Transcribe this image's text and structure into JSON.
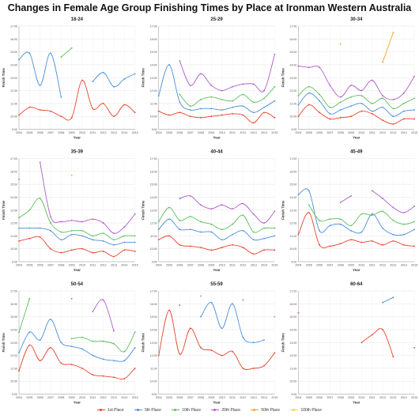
{
  "title": "Changes in Female Age Group Finishing Times by Place at Ironman Western Australia",
  "series_colors": {
    "1st Place": "#e8432e",
    "5th Place": "#4a90d9",
    "10th Place": "#5cbf5c",
    "20th Place": "#b05cc8",
    "50th Place": "#f5a623",
    "100th Place": "#f5d142"
  },
  "legend": [
    "1st Place",
    "5th Place",
    "10th Place",
    "20th Place",
    "50th Place",
    "100th Place"
  ],
  "chart_data": [
    {
      "type": "line",
      "title": "18-24",
      "xlabel": "Year",
      "ylabel": "Finish Time",
      "x": [
        2004,
        2005,
        2006,
        2007,
        2008,
        2009,
        2010,
        2011,
        2012,
        2013,
        2014,
        2015
      ],
      "yticks": [
        "9:00",
        "10:00",
        "11:00",
        "12:00",
        "13:00",
        "14:00",
        "15:00",
        "16:00",
        "17:00"
      ],
      "ylim": [
        9,
        17
      ],
      "series": [
        {
          "name": "1st Place",
          "values": [
            10.1,
            10.7,
            10.5,
            10.4,
            10.0,
            9.9,
            12.8,
            10.6,
            11.0,
            10.0,
            10.9,
            10.3
          ]
        },
        {
          "name": "5th Place",
          "values": [
            14.4,
            14.9,
            12.4,
            14.9,
            11.5,
            null,
            null,
            12.7,
            13.4,
            12.3,
            12.9,
            13.3
          ]
        },
        {
          "name": "10th Place",
          "values": [
            null,
            null,
            null,
            null,
            14.6,
            15.3,
            null,
            null,
            null,
            null,
            null,
            null
          ]
        }
      ]
    },
    {
      "type": "line",
      "title": "25-29",
      "xlabel": "Year",
      "ylabel": "Finish Time",
      "x": [
        2004,
        2005,
        2006,
        2007,
        2008,
        2009,
        2010,
        2011,
        2012,
        2013,
        2014,
        2015
      ],
      "yticks": [
        "9:00",
        "10:00",
        "11:00",
        "12:00",
        "13:00",
        "14:00",
        "15:00",
        "16:00",
        "17:00"
      ],
      "ylim": [
        9,
        17
      ],
      "series": [
        {
          "name": "1st Place",
          "values": [
            10.4,
            10.1,
            10.3,
            10.0,
            9.9,
            10.0,
            10.1,
            10.2,
            10.1,
            9.5,
            10.3,
            9.9
          ]
        },
        {
          "name": "5th Place",
          "values": [
            11.6,
            14.0,
            11.1,
            10.5,
            10.6,
            10.6,
            10.5,
            10.7,
            10.8,
            10.3,
            10.7,
            11.2
          ]
        },
        {
          "name": "10th Place",
          "values": [
            null,
            null,
            11.7,
            10.8,
            11.3,
            11.5,
            11.3,
            11.2,
            11.7,
            11.1,
            11.4,
            12.3
          ]
        },
        {
          "name": "20th Place",
          "values": [
            null,
            null,
            14.3,
            12.4,
            13.3,
            12.4,
            12.0,
            12.3,
            12.5,
            12.5,
            12.0,
            14.8
          ]
        }
      ]
    },
    {
      "type": "line",
      "title": "30-34",
      "xlabel": "Year",
      "ylabel": "Finish Time",
      "x": [
        2004,
        2005,
        2006,
        2007,
        2008,
        2009,
        2010,
        2011,
        2012,
        2013,
        2014,
        2015
      ],
      "yticks": [
        "9:00",
        "10:00",
        "11:00",
        "12:00",
        "13:00",
        "14:00",
        "15:00",
        "16:00",
        "17:00"
      ],
      "ylim": [
        9,
        17
      ],
      "series": [
        {
          "name": "1st Place",
          "values": [
            10.0,
            10.9,
            10.3,
            9.8,
            9.9,
            10.0,
            10.4,
            10.2,
            9.7,
            9.4,
            9.8,
            9.8
          ]
        },
        {
          "name": "5th Place",
          "values": [
            10.9,
            11.8,
            11.2,
            10.2,
            10.5,
            10.8,
            11.0,
            10.4,
            10.7,
            10.0,
            10.4,
            10.5
          ]
        },
        {
          "name": "10th Place",
          "values": [
            11.6,
            12.3,
            11.7,
            10.7,
            11.1,
            11.5,
            11.6,
            11.0,
            11.4,
            10.6,
            11.0,
            11.4
          ]
        },
        {
          "name": "20th Place",
          "values": [
            13.9,
            13.8,
            13.8,
            12.4,
            11.5,
            12.4,
            12.0,
            12.8,
            11.6,
            11.3,
            11.8,
            13.1
          ]
        },
        {
          "name": "50th Place",
          "values": [
            null,
            null,
            null,
            null,
            15.6,
            null,
            null,
            null,
            14.2,
            16.5,
            null,
            null
          ]
        }
      ]
    },
    {
      "type": "line",
      "title": "35-39",
      "xlabel": "Year",
      "ylabel": "Finish Time",
      "x": [
        2004,
        2005,
        2006,
        2007,
        2008,
        2009,
        2010,
        2011,
        2012,
        2013,
        2014,
        2015
      ],
      "yticks": [
        "9:00",
        "10:00",
        "11:00",
        "12:00",
        "13:00",
        "14:00",
        "15:00",
        "16:00",
        "17:00"
      ],
      "ylim": [
        9,
        17
      ],
      "series": [
        {
          "name": "1st Place",
          "values": [
            10.6,
            10.8,
            10.9,
            10.0,
            9.7,
            9.9,
            10.0,
            9.7,
            9.8,
            9.4,
            9.9,
            9.8
          ]
        },
        {
          "name": "5th Place",
          "values": [
            11.6,
            11.6,
            11.6,
            11.4,
            10.7,
            11.1,
            11.0,
            10.7,
            10.6,
            10.3,
            10.5,
            10.5
          ]
        },
        {
          "name": "10th Place",
          "values": [
            12.4,
            13.0,
            13.9,
            12.0,
            11.3,
            11.4,
            11.4,
            11.0,
            11.2,
            10.7,
            11.0,
            11.0
          ]
        },
        {
          "name": "20th Place",
          "values": [
            15.4,
            null,
            16.7,
            12.5,
            12.1,
            12.2,
            12.1,
            12.3,
            12.0,
            11.2,
            11.7,
            12.7
          ]
        },
        {
          "name": "50th Place",
          "values": [
            null,
            null,
            null,
            null,
            null,
            15.7,
            null,
            null,
            null,
            null,
            null,
            null
          ]
        }
      ]
    },
    {
      "type": "line",
      "title": "40-44",
      "xlabel": "Year",
      "ylabel": "Finish Time",
      "x": [
        2004,
        2005,
        2006,
        2007,
        2008,
        2009,
        2010,
        2011,
        2012,
        2013,
        2014,
        2015
      ],
      "yticks": [
        "9:00",
        "10:00",
        "11:00",
        "12:00",
        "13:00",
        "14:00",
        "15:00",
        "16:00",
        "17:00"
      ],
      "ylim": [
        9,
        17
      ],
      "series": [
        {
          "name": "1st Place",
          "values": [
            10.7,
            11.0,
            10.3,
            10.2,
            10.1,
            9.9,
            10.1,
            10.3,
            10.1,
            9.6,
            9.9,
            9.9
          ]
        },
        {
          "name": "5th Place",
          "values": [
            11.5,
            12.3,
            11.5,
            11.5,
            11.3,
            11.3,
            10.7,
            11.1,
            11.4,
            10.7,
            10.8,
            11.0
          ]
        },
        {
          "name": "10th Place",
          "values": [
            12.1,
            13.2,
            12.2,
            12.5,
            12.1,
            11.9,
            11.5,
            11.9,
            12.6,
            11.3,
            11.6,
            11.6
          ]
        },
        {
          "name": "20th Place",
          "values": [
            null,
            null,
            13.9,
            14.1,
            13.4,
            13.1,
            13.4,
            13.1,
            13.5,
            12.7,
            12.0,
            12.9
          ]
        }
      ]
    },
    {
      "type": "line",
      "title": "45-49",
      "xlabel": "Year",
      "ylabel": "Finish Time",
      "x": [
        2004,
        2005,
        2006,
        2007,
        2008,
        2009,
        2010,
        2011,
        2012,
        2013,
        2014,
        2015
      ],
      "yticks": [
        "9:00",
        "10:00",
        "11:00",
        "12:00",
        "13:00",
        "14:00",
        "15:00",
        "16:00",
        "17:00"
      ],
      "ylim": [
        9,
        17
      ],
      "series": [
        {
          "name": "1st Place",
          "values": [
            11.1,
            12.8,
            10.3,
            10.2,
            10.4,
            10.7,
            10.5,
            10.6,
            10.3,
            10.6,
            10.3,
            10.2
          ]
        },
        {
          "name": "5th Place",
          "values": [
            14.2,
            14.5,
            11.4,
            11.8,
            11.9,
            11.4,
            11.3,
            12.7,
            11.6,
            11.1,
            11.1,
            11.5
          ]
        },
        {
          "name": "10th Place",
          "values": [
            null,
            13.4,
            12.2,
            12.3,
            12.3,
            11.8,
            12.7,
            12.6,
            12.9,
            12.2,
            11.9,
            12.1
          ]
        },
        {
          "name": "20th Place",
          "values": [
            null,
            null,
            null,
            null,
            13.6,
            14.1,
            null,
            14.5,
            13.9,
            13.2,
            12.8,
            13.3
          ]
        }
      ]
    },
    {
      "type": "line",
      "title": "50-54",
      "xlabel": "Year",
      "ylabel": "Finish Time",
      "x": [
        2004,
        2005,
        2006,
        2007,
        2008,
        2009,
        2010,
        2011,
        2012,
        2013,
        2014,
        2015
      ],
      "yticks": [
        "9:00",
        "10:00",
        "11:00",
        "12:00",
        "13:00",
        "14:00",
        "15:00",
        "16:00",
        "17:00"
      ],
      "ylim": [
        9,
        17
      ],
      "series": [
        {
          "name": "1st Place",
          "values": [
            10.8,
            12.8,
            11.6,
            12.6,
            11.4,
            11.3,
            11.0,
            10.5,
            10.4,
            10.3,
            10.2,
            11.0
          ]
        },
        {
          "name": "5th Place",
          "values": [
            12.2,
            13.8,
            13.2,
            14.8,
            13.0,
            12.7,
            12.5,
            12.0,
            11.7,
            11.6,
            11.6,
            12.6
          ]
        },
        {
          "name": "10th Place",
          "values": [
            13.8,
            16.4,
            null,
            null,
            null,
            13.3,
            13.4,
            13.1,
            13.1,
            12.9,
            12.3,
            13.8
          ]
        },
        {
          "name": "20th Place",
          "values": [
            null,
            null,
            null,
            null,
            null,
            16.4,
            null,
            15.4,
            16.3,
            13.9,
            null,
            null
          ]
        }
      ]
    },
    {
      "type": "line",
      "title": "55-59",
      "xlabel": "Year",
      "ylabel": "Finish Time",
      "x": [
        2004,
        2005,
        2006,
        2007,
        2008,
        2009,
        2010,
        2011,
        2012,
        2013,
        2014,
        2015
      ],
      "yticks": [
        "9:00",
        "10:00",
        "11:00",
        "12:00",
        "13:00",
        "14:00",
        "15:00",
        "16:00",
        "17:00"
      ],
      "ylim": [
        9,
        17
      ],
      "series": [
        {
          "name": "1st Place",
          "values": [
            12.0,
            15.5,
            12.1,
            14.1,
            12.6,
            12.4,
            12.0,
            12.3,
            11.0,
            11.0,
            11.2,
            12.2
          ]
        },
        {
          "name": "5th Place",
          "values": [
            null,
            null,
            null,
            null,
            15.0,
            16.1,
            14.1,
            16.0,
            13.4,
            13.0,
            13.2,
            null
          ]
        },
        {
          "name": "10th Place",
          "values": [
            null,
            null,
            null,
            null,
            16.6,
            null,
            null,
            null,
            null,
            null,
            null,
            15.0
          ]
        },
        {
          "name": "20th Place",
          "values": [
            null,
            null,
            15.9,
            null,
            null,
            null,
            null,
            null,
            16.3,
            null,
            null,
            null
          ]
        }
      ]
    },
    {
      "type": "line",
      "title": "60-64",
      "xlabel": "Year",
      "ylabel": "Finish Time",
      "x": [
        2004,
        2005,
        2006,
        2007,
        2008,
        2009,
        2010,
        2011,
        2012,
        2013,
        2014,
        2015
      ],
      "yticks": [
        "9:00",
        "10:00",
        "11:00",
        "12:00",
        "13:00",
        "14:00",
        "15:00",
        "16:00",
        "17:00"
      ],
      "ylim": [
        9,
        17
      ],
      "series": [
        {
          "name": "1st Place",
          "values": [
            15.3,
            null,
            null,
            null,
            null,
            null,
            13.0,
            13.6,
            14.0,
            11.9,
            null,
            12.6
          ]
        },
        {
          "name": "5th Place",
          "values": [
            null,
            null,
            null,
            null,
            null,
            null,
            null,
            null,
            16.1,
            16.5,
            null,
            null
          ]
        }
      ]
    }
  ]
}
